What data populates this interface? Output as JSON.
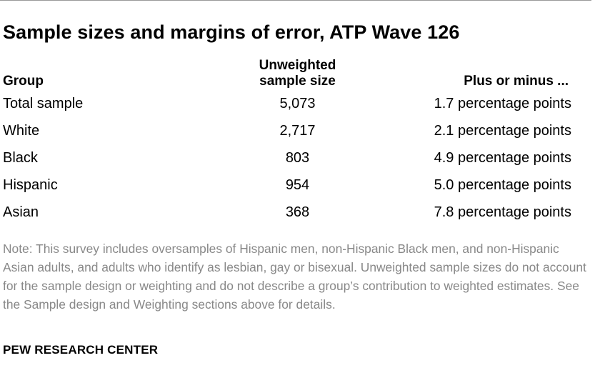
{
  "title": "Sample sizes and margins of error, ATP Wave 126",
  "chart_data": {
    "type": "table",
    "columns": [
      "Group",
      "Unweighted sample size",
      "Plus or minus ..."
    ],
    "rows": [
      {
        "group": "Total sample",
        "size": "5,073",
        "moe": "1.7 percentage points"
      },
      {
        "group": "White",
        "size": "2,717",
        "moe": "2.1 percentage points"
      },
      {
        "group": "Black",
        "size": "803",
        "moe": "4.9 percentage points"
      },
      {
        "group": "Hispanic",
        "size": "954",
        "moe": "5.0 percentage points"
      },
      {
        "group": "Asian",
        "size": "368",
        "moe": "7.8 percentage points"
      }
    ]
  },
  "headers": {
    "group": "Group",
    "size_line1": "Unweighted",
    "size_line2": "sample size",
    "moe": "Plus or minus ..."
  },
  "note": "Note: This survey includes oversamples of Hispanic men, non-Hispanic Black men, and non-Hispanic Asian adults, and adults who identify as lesbian, gay or bisexual. Unweighted sample sizes do not account for the sample design or weighting and do not describe a group’s contribution to weighted estimates. See the Sample design and Weighting sections above for details.",
  "source": "PEW RESEARCH CENTER"
}
